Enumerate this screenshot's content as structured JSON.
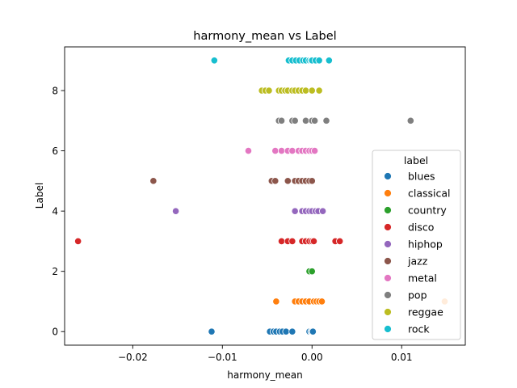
{
  "chart_data": {
    "type": "scatter",
    "title": "harmony_mean vs Label",
    "xlabel": "harmony_mean",
    "ylabel": "Label",
    "xlim": [
      -0.0276,
      0.0171
    ],
    "ylim": [
      -0.45,
      9.45
    ],
    "xticks": [
      -0.02,
      -0.01,
      0.0,
      0.01
    ],
    "xtick_labels": [
      "−0.02",
      "−0.01",
      "0.00",
      "0.01"
    ],
    "yticks": [
      0,
      2,
      4,
      6,
      8
    ],
    "ytick_labels": [
      "0",
      "2",
      "4",
      "6",
      "8"
    ],
    "grid": false,
    "legend": {
      "title": "label",
      "placement": "center-right"
    },
    "series": [
      {
        "name": "blues",
        "color": "#1f77b4",
        "y": 0,
        "x": [
          -0.0112,
          -0.0047,
          -0.0043,
          -0.004,
          -0.0036,
          -0.0033,
          -0.0029,
          -0.0022,
          -0.0003,
          -0.0001,
          0.0,
          0.0001
        ]
      },
      {
        "name": "classical",
        "color": "#ff7f0e",
        "y": 1,
        "x": [
          -0.004,
          -0.0019,
          -0.0015,
          -0.0011,
          -0.0007,
          -0.0003,
          0.0002,
          0.0005,
          0.0008,
          0.0011,
          0.0148
        ]
      },
      {
        "name": "country",
        "color": "#2ca02c",
        "y": 2,
        "x": [
          -0.0003,
          0.0
        ]
      },
      {
        "name": "disco",
        "color": "#d62728",
        "y": 3,
        "x": [
          -0.0261,
          -0.0034,
          -0.0027,
          -0.0022,
          -0.0011,
          -0.0007,
          -0.0003,
          0.0,
          0.0002,
          0.0026,
          0.0031
        ]
      },
      {
        "name": "hiphop",
        "color": "#9467bd",
        "y": 4,
        "x": [
          -0.0152,
          -0.0019,
          -0.0011,
          -0.0007,
          -0.0003,
          0.0,
          0.0004,
          0.0007,
          0.0012
        ]
      },
      {
        "name": "jazz",
        "color": "#8c564b",
        "y": 5,
        "x": [
          -0.0177,
          -0.0045,
          -0.0041,
          -0.0027,
          -0.0019,
          -0.0015,
          -0.0011,
          -0.0007,
          -0.0003,
          0.0
        ]
      },
      {
        "name": "metal",
        "color": "#e377c2",
        "y": 6,
        "x": [
          -0.0071,
          -0.0041,
          -0.0034,
          -0.0027,
          -0.0022,
          -0.0015,
          -0.0011,
          -0.0007,
          -0.0003,
          0.0,
          0.0003
        ]
      },
      {
        "name": "pop",
        "color": "#7f7f7f",
        "y": 7,
        "x": [
          -0.0037,
          -0.0034,
          -0.0022,
          -0.0019,
          -0.0007,
          0.0,
          0.0003,
          0.0016,
          0.011
        ]
      },
      {
        "name": "reggae",
        "color": "#bcbd22",
        "y": 8,
        "x": [
          -0.0056,
          -0.0052,
          -0.0048,
          -0.0037,
          -0.0034,
          -0.003,
          -0.0027,
          -0.0022,
          -0.0019,
          -0.0015,
          -0.0011,
          -0.0007,
          0.0,
          0.0008
        ]
      },
      {
        "name": "rock",
        "color": "#17becf",
        "y": 9,
        "x": [
          -0.0109,
          -0.0026,
          -0.0022,
          -0.0018,
          -0.0014,
          -0.001,
          -0.0007,
          -0.0003,
          -0.0001,
          0.0,
          0.0004,
          0.0008,
          0.0019
        ]
      }
    ]
  }
}
